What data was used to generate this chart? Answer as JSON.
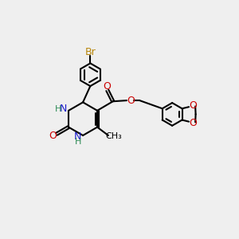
{
  "bg_color": "#efefef",
  "bond_color": "#000000",
  "bond_lw": 1.5,
  "N_color": "#1a1acd",
  "O_color": "#cc0000",
  "Br_color": "#b8860b",
  "H_color": "#2e8b57",
  "fig_size": [
    3.0,
    3.0
  ],
  "dpi": 100,
  "xlim": [
    0,
    10
  ],
  "ylim": [
    0,
    10
  ]
}
